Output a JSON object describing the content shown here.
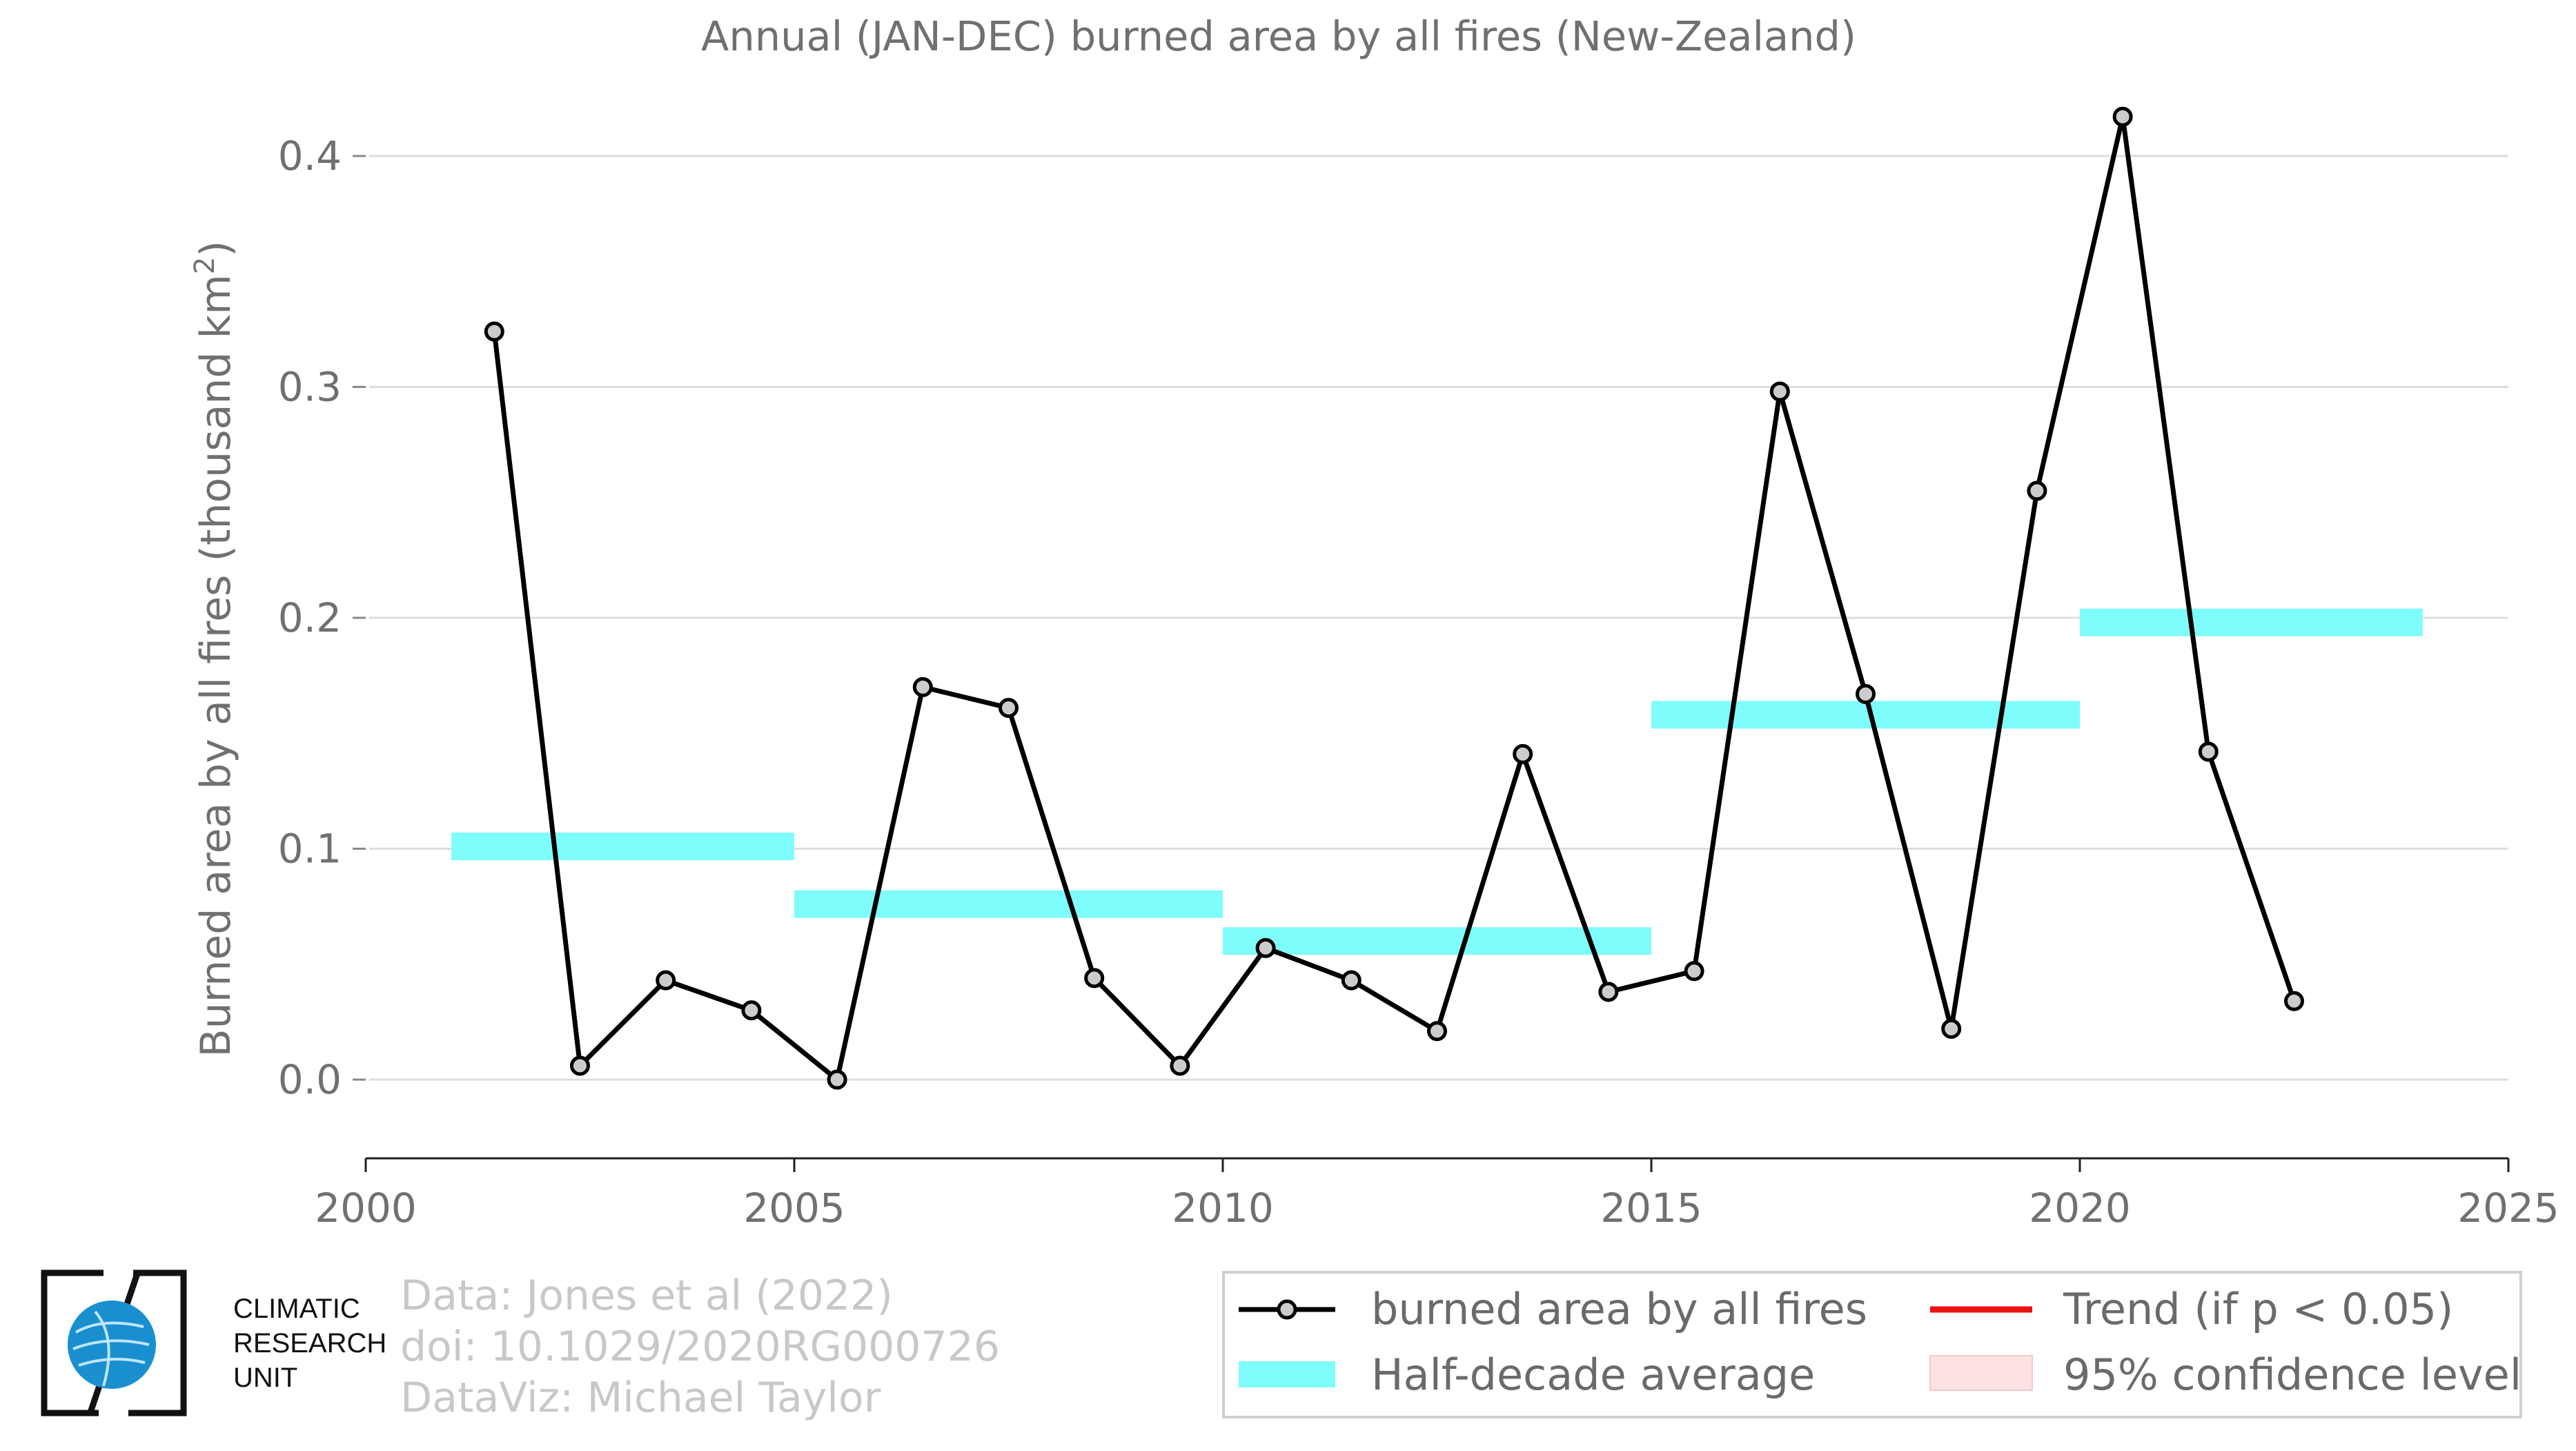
{
  "chart_data": {
    "type": "line",
    "title": "Annual (JAN-DEC) burned area by all fires (New-Zealand)",
    "ylabel": "Burned area by all fires (thousand km",
    "ylabel_superscript": "2",
    "ylabel_suffix": ")",
    "xlim": [
      2000,
      2025
    ],
    "ylim": [
      -0.033,
      0.43
    ],
    "x_ticks": [
      "2000",
      "2005",
      "2010",
      "2015",
      "2020",
      "2025"
    ],
    "y_ticks": [
      "0.0",
      "0.1",
      "0.2",
      "0.3",
      "0.4"
    ],
    "grid": "horizontal",
    "series": [
      {
        "name": "burned area by all fires",
        "color": "#000000",
        "marker_fill": "#cccccc",
        "x": [
          2001.5,
          2002.5,
          2003.5,
          2004.5,
          2005.5,
          2006.5,
          2007.5,
          2008.5,
          2009.5,
          2010.5,
          2011.5,
          2012.5,
          2013.5,
          2014.5,
          2015.5,
          2016.5,
          2017.5,
          2018.5,
          2019.5,
          2020.5,
          2021.5,
          2022.5
        ],
        "y": [
          0.324,
          0.006,
          0.043,
          0.03,
          0.0,
          0.17,
          0.161,
          0.044,
          0.006,
          0.057,
          0.043,
          0.021,
          0.141,
          0.038,
          0.047,
          0.298,
          0.167,
          0.022,
          0.255,
          0.417,
          0.142,
          0.034
        ]
      }
    ],
    "half_decade_average": {
      "name": "Half-decade average",
      "color": "#7ffcfc",
      "segments": [
        {
          "x0": 2001,
          "x1": 2005,
          "y": 0.101
        },
        {
          "x0": 2005,
          "x1": 2010,
          "y": 0.076
        },
        {
          "x0": 2010,
          "x1": 2015,
          "y": 0.06
        },
        {
          "x0": 2015,
          "x1": 2020,
          "y": 0.158
        },
        {
          "x0": 2020,
          "x1": 2024,
          "y": 0.198
        }
      ]
    },
    "legend": {
      "placement": "bottom-right",
      "items": [
        {
          "label": "burned area by all fires",
          "kind": "line-marker",
          "color": "#000000"
        },
        {
          "label": "Trend (if p < 0.05)",
          "kind": "line",
          "color": "#ee1111"
        },
        {
          "label": "Half-decade average",
          "kind": "band",
          "color": "#7ffcfc"
        },
        {
          "label": "95% confidence level",
          "kind": "patch",
          "color": "#fde2e2"
        }
      ]
    }
  },
  "credits": {
    "line1": "Data: Jones et al (2022)",
    "line2": "doi: 10.1029/2020RG000726",
    "line3": "DataViz: Michael Taylor"
  },
  "logo": {
    "line1": "CLIMATIC",
    "line2": "RESEARCH",
    "line3": "UNIT",
    "globe_color": "#1a8fd0"
  }
}
